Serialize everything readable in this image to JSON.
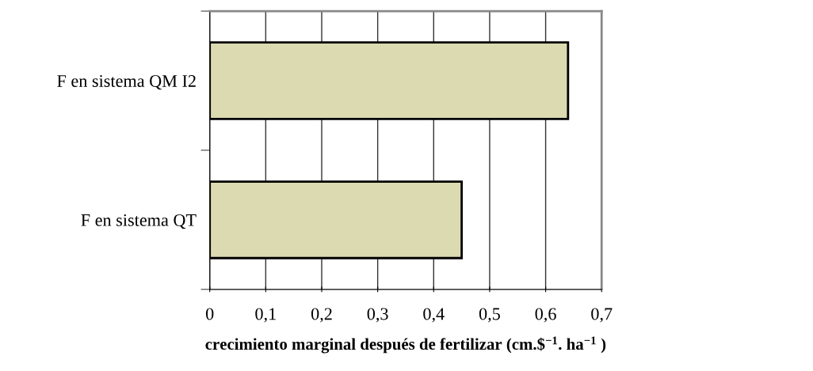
{
  "chart_data": {
    "type": "bar",
    "orientation": "horizontal",
    "categories": [
      "F en sistema QM I2",
      "F en sistema QT"
    ],
    "values": [
      0.64,
      0.45
    ],
    "color": "#dcdab0",
    "xlabel": "crecimiento marginal después de fertilizar (cm.$$^{−1}$. ha$^{−1}$ )",
    "xlim": [
      0,
      0.7
    ],
    "xticks": [
      0,
      {
        "value": 0.1,
        "label": "0,1"
      },
      {
        "value": 0.2,
        "label": "0,2"
      },
      {
        "value": 0.3,
        "label": "0,3"
      },
      {
        "value": 0.4,
        "label": "0,4"
      },
      {
        "value": 0.5,
        "label": "0,5"
      },
      {
        "value": 0.6,
        "label": "0,6"
      },
      {
        "value": 0.7,
        "label": "0,7"
      }
    ],
    "grid": "x",
    "legend": false
  }
}
